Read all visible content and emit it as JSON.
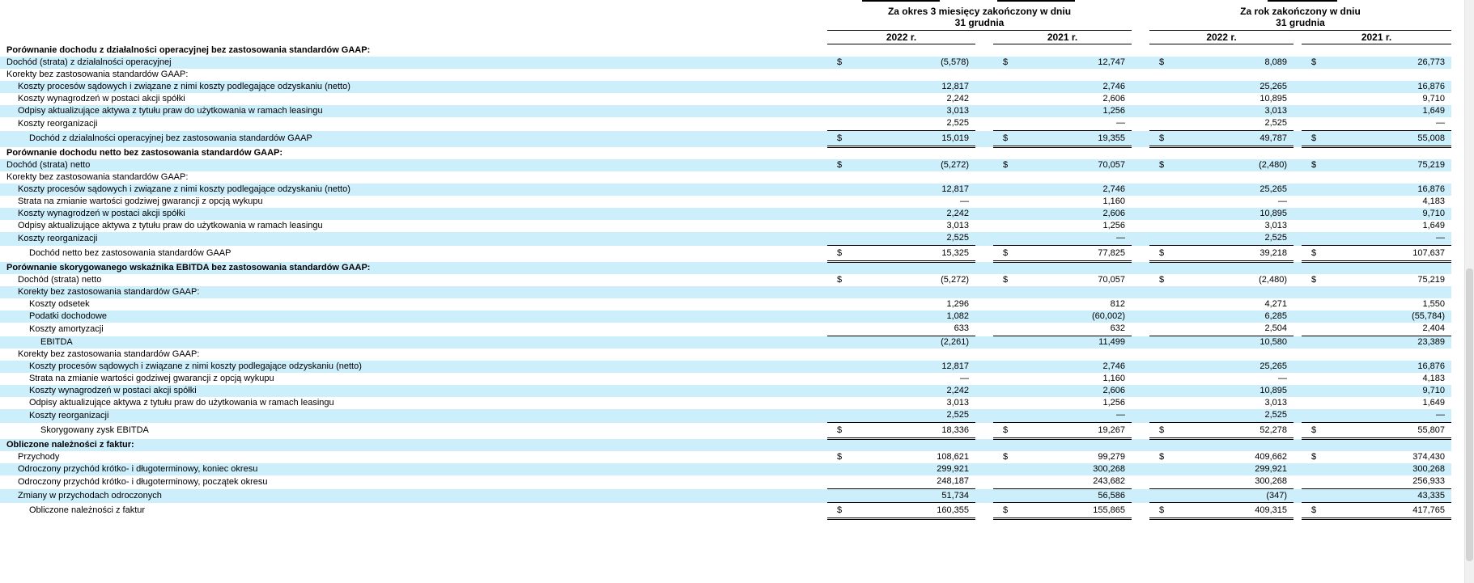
{
  "colors": {
    "row_highlight": "#cdeefb",
    "text": "#000000",
    "rule": "#000000",
    "scrollbar_track": "#f0f0f0",
    "scrollbar_thumb": "#d3d3d3"
  },
  "header": {
    "period_groups": [
      {
        "line1": "Za okres 3 miesięcy zakończony w dniu",
        "line2": "31 grudnia"
      },
      {
        "line1": "Za rok zakończony w dniu",
        "line2": "31 grudnia"
      }
    ],
    "year_columns": [
      "2022 r.",
      "2021 r.",
      "2022 r.",
      "2021 r."
    ]
  },
  "table": {
    "rows": [
      {
        "label": "Porównanie dochodu z działalności operacyjnej bez zastosowania standardów GAAP:",
        "indent": 0,
        "bold": true,
        "values": null
      },
      {
        "label": "Dochód (strata) z działalności operacyjnej",
        "indent": 0,
        "dollar": true,
        "values": [
          "(5,578)",
          "12,747",
          "8,089",
          "26,773"
        ]
      },
      {
        "label": "Korekty bez zastosowania standardów GAAP:",
        "indent": 0,
        "values": null
      },
      {
        "label": "Koszty procesów sądowych i związane z nimi koszty podlegające odzyskaniu (netto)",
        "indent": 1,
        "values": [
          "12,817",
          "2,746",
          "25,265",
          "16,876"
        ]
      },
      {
        "label": "Koszty wynagrodzeń w postaci akcji spółki",
        "indent": 1,
        "values": [
          "2,242",
          "2,606",
          "10,895",
          "9,710"
        ]
      },
      {
        "label": "Odpisy aktualizujące aktywa z tytułu praw do użytkowania w ramach leasingu",
        "indent": 1,
        "values": [
          "3,013",
          "1,256",
          "3,013",
          "1,649"
        ]
      },
      {
        "label": "Koszty reorganizacji",
        "indent": 1,
        "values": [
          "2,525",
          "—",
          "2,525",
          "—"
        ],
        "rule": "single"
      },
      {
        "label": "Dochód z działalności operacyjnej bez zastosowania standardów GAAP",
        "indent": 2,
        "dollar": true,
        "values": [
          "15,019",
          "19,355",
          "49,787",
          "55,008"
        ],
        "rule": "double"
      },
      {
        "label": "Porównanie dochodu netto bez zastosowania standardów GAAP:",
        "indent": 0,
        "bold": true,
        "values": null
      },
      {
        "label": "Dochód (strata) netto",
        "indent": 0,
        "dollar": true,
        "values": [
          "(5,272)",
          "70,057",
          "(2,480)",
          "75,219"
        ]
      },
      {
        "label": "Korekty bez zastosowania standardów GAAP:",
        "indent": 0,
        "values": null
      },
      {
        "label": "Koszty procesów sądowych i związane z nimi koszty podlegające odzyskaniu (netto)",
        "indent": 1,
        "values": [
          "12,817",
          "2,746",
          "25,265",
          "16,876"
        ]
      },
      {
        "label": "Strata na zmianie wartości godziwej gwarancji z opcją wykupu",
        "indent": 1,
        "values": [
          "—",
          "1,160",
          "—",
          "4,183"
        ]
      },
      {
        "label": "Koszty wynagrodzeń w postaci akcji spółki",
        "indent": 1,
        "values": [
          "2,242",
          "2,606",
          "10,895",
          "9,710"
        ]
      },
      {
        "label": "Odpisy aktualizujące aktywa z tytułu praw do użytkowania w ramach leasingu",
        "indent": 1,
        "values": [
          "3,013",
          "1,256",
          "3,013",
          "1,649"
        ]
      },
      {
        "label": "Koszty reorganizacji",
        "indent": 1,
        "values": [
          "2,525",
          "—",
          "2,525",
          "—"
        ],
        "rule": "single"
      },
      {
        "label": "Dochód netto bez zastosowania standardów GAAP",
        "indent": 2,
        "dollar": true,
        "values": [
          "15,325",
          "77,825",
          "39,218",
          "107,637"
        ],
        "rule": "double"
      },
      {
        "label": "Porównanie skorygowanego wskaźnika EBITDA bez zastosowania standardów GAAP:",
        "indent": 0,
        "bold": true,
        "values": null
      },
      {
        "label": "Dochód (strata) netto",
        "indent": 1,
        "dollar": true,
        "values": [
          "(5,272)",
          "70,057",
          "(2,480)",
          "75,219"
        ]
      },
      {
        "label": "Korekty bez zastosowania standardów GAAP:",
        "indent": 1,
        "values": null
      },
      {
        "label": "Koszty odsetek",
        "indent": 2,
        "values": [
          "1,296",
          "812",
          "4,271",
          "1,550"
        ]
      },
      {
        "label": "Podatki dochodowe",
        "indent": 2,
        "values": [
          "1,082",
          "(60,002)",
          "6,285",
          "(55,784)"
        ]
      },
      {
        "label": "Koszty amortyzacji",
        "indent": 2,
        "values": [
          "633",
          "632",
          "2,504",
          "2,404"
        ],
        "rule": "single"
      },
      {
        "label": "EBITDA",
        "indent": 3,
        "values": [
          "(2,261)",
          "11,499",
          "10,580",
          "23,389"
        ]
      },
      {
        "label": "Korekty bez zastosowania standardów GAAP:",
        "indent": 1,
        "values": null
      },
      {
        "label": "Koszty procesów sądowych i związane z nimi koszty podlegające odzyskaniu (netto)",
        "indent": 2,
        "values": [
          "12,817",
          "2,746",
          "25,265",
          "16,876"
        ]
      },
      {
        "label": "Strata na zmianie wartości godziwej gwarancji z opcją wykupu",
        "indent": 2,
        "values": [
          "—",
          "1,160",
          "—",
          "4,183"
        ]
      },
      {
        "label": "Koszty wynagrodzeń w postaci akcji spółki",
        "indent": 2,
        "values": [
          "2,242",
          "2,606",
          "10,895",
          "9,710"
        ]
      },
      {
        "label": "Odpisy aktualizujące aktywa z tytułu praw do użytkowania w ramach leasingu",
        "indent": 2,
        "values": [
          "3,013",
          "1,256",
          "3,013",
          "1,649"
        ]
      },
      {
        "label": "Koszty reorganizacji",
        "indent": 2,
        "values": [
          "2,525",
          "—",
          "2,525",
          "—"
        ],
        "rule": "single"
      },
      {
        "label": "Skorygowany zysk EBITDA",
        "indent": 3,
        "dollar": true,
        "values": [
          "18,336",
          "19,267",
          "52,278",
          "55,807"
        ],
        "rule": "double"
      },
      {
        "label": "Obliczone należności z faktur:",
        "indent": 0,
        "bold": true,
        "values": null
      },
      {
        "label": "Przychody",
        "indent": 1,
        "dollar": true,
        "values": [
          "108,621",
          "99,279",
          "409,662",
          "374,430"
        ]
      },
      {
        "label": "Odroczony przychód krótko- i długoterminowy, koniec okresu",
        "indent": 1,
        "values": [
          "299,921",
          "300,268",
          "299,921",
          "300,268"
        ]
      },
      {
        "label": "Odroczony przychód krótko- i długoterminowy, początek okresu",
        "indent": 1,
        "values": [
          "248,187",
          "243,682",
          "300,268",
          "256,933"
        ],
        "rule": "single"
      },
      {
        "label": "Zmiany w przychodach odroczonych",
        "indent": 1,
        "values": [
          "51,734",
          "56,586",
          "(347)",
          "43,335"
        ],
        "rule": "single"
      },
      {
        "label": "Obliczone należności z faktur",
        "indent": 2,
        "dollar": true,
        "values": [
          "160,355",
          "155,865",
          "409,315",
          "417,765"
        ],
        "rule": "double"
      }
    ]
  }
}
